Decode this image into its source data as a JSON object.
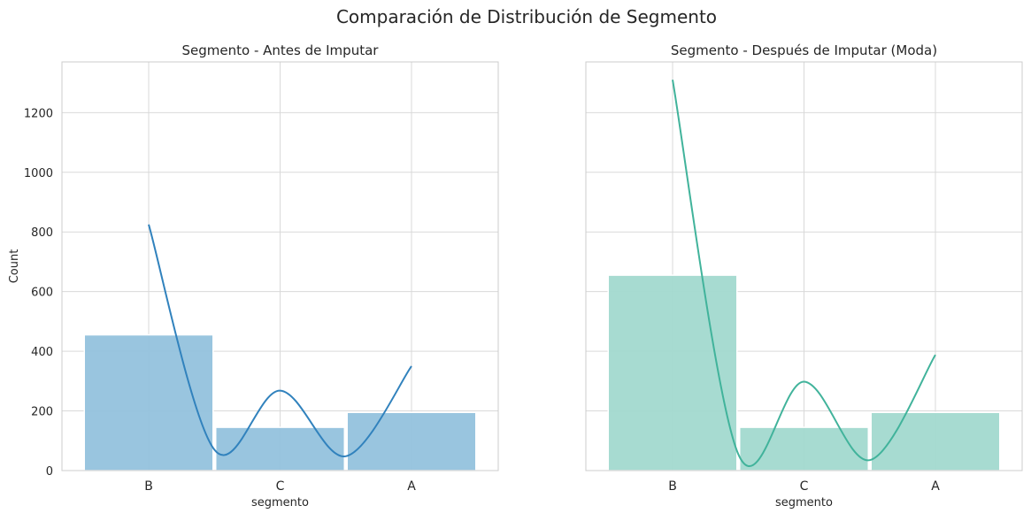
{
  "figure": {
    "suptitle": "Comparación de Distribución de Segmento"
  },
  "chart_data": [
    {
      "type": "bar",
      "title": "Segmento - Antes de Imputar",
      "xlabel": "segmento",
      "ylabel": "Count",
      "categories": [
        "B",
        "C",
        "A"
      ],
      "values": [
        455,
        145,
        195
      ],
      "kde_values": [
        825,
        70,
        268,
        48,
        350
      ],
      "kde_x": [
        0,
        0.5,
        1,
        1.5,
        2
      ],
      "ylim": [
        0,
        1370
      ],
      "yticks": [
        0,
        200,
        400,
        600,
        800,
        1000,
        1200
      ],
      "grid": true,
      "color": "#3182bd",
      "bar_color": "#93c2dd"
    },
    {
      "type": "bar",
      "title": "Segmento - Después de Imputar (Moda)",
      "xlabel": "segmento",
      "ylabel": "",
      "categories": [
        "B",
        "C",
        "A"
      ],
      "values": [
        655,
        145,
        195
      ],
      "kde_values": [
        1310,
        55,
        298,
        35,
        388
      ],
      "kde_x": [
        0,
        0.5,
        1,
        1.5,
        2
      ],
      "ylim": [
        0,
        1370
      ],
      "yticks": [
        0,
        200,
        400,
        600,
        800,
        1000,
        1200
      ],
      "grid": true,
      "color": "#41b39b",
      "bar_color": "#a2d9cf"
    }
  ]
}
